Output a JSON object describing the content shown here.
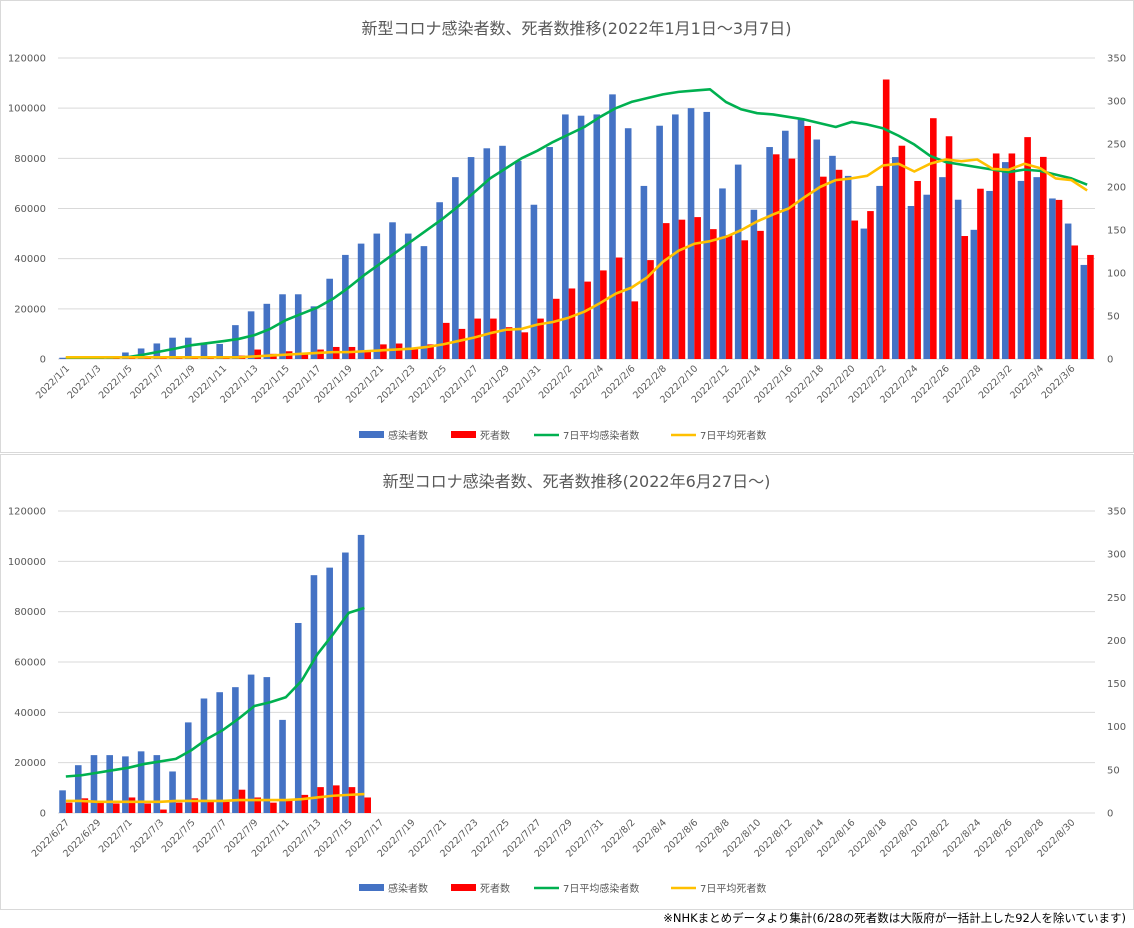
{
  "colors": {
    "cases": "#4472C4",
    "deaths": "#FF0000",
    "cases_avg": "#00B050",
    "deaths_avg": "#FFC000",
    "grid": "#d9d9d9",
    "text": "#595959"
  },
  "legend": [
    "感染者数",
    "死者数",
    "7日平均感染者数",
    "7日平均死者数"
  ],
  "footnote": "※NHKまとめデータより集計(6/28の死者数は大阪府が一括計上した92人を除いています)",
  "chart_data": [
    {
      "type": "bar",
      "title": "新型コロナ感染者数、死者数推移(2022年1月1日～3月7日)",
      "start": "2022-01-01",
      "categories": [
        "2022/1/1",
        "2022/1/2",
        "2022/1/3",
        "2022/1/4",
        "2022/1/5",
        "2022/1/6",
        "2022/1/7",
        "2022/1/8",
        "2022/1/9",
        "2022/1/10",
        "2022/1/11",
        "2022/1/12",
        "2022/1/13",
        "2022/1/14",
        "2022/1/15",
        "2022/1/16",
        "2022/1/17",
        "2022/1/18",
        "2022/1/19",
        "2022/1/20",
        "2022/1/21",
        "2022/1/22",
        "2022/1/23",
        "2022/1/24",
        "2022/1/25",
        "2022/1/26",
        "2022/1/27",
        "2022/1/28",
        "2022/1/29",
        "2022/1/30",
        "2022/1/31",
        "2022/2/1",
        "2022/2/2",
        "2022/2/3",
        "2022/2/4",
        "2022/2/5",
        "2022/2/6",
        "2022/2/7",
        "2022/2/8",
        "2022/2/9",
        "2022/2/10",
        "2022/2/11",
        "2022/2/12",
        "2022/2/13",
        "2022/2/14",
        "2022/2/15",
        "2022/2/16",
        "2022/2/17",
        "2022/2/18",
        "2022/2/19",
        "2022/2/20",
        "2022/2/21",
        "2022/2/22",
        "2022/2/23",
        "2022/2/24",
        "2022/2/25",
        "2022/2/26",
        "2022/2/27",
        "2022/2/28",
        "2022/3/1",
        "2022/3/2",
        "2022/3/3",
        "2022/3/4",
        "2022/3/5",
        "2022/3/6",
        "2022/3/7"
      ],
      "xtick_labels": [
        "2022/1/1",
        "2022/1/3",
        "2022/1/5",
        "2022/1/7",
        "2022/1/9",
        "2022/1/11",
        "2022/1/13",
        "2022/1/15",
        "2022/1/17",
        "2022/1/19",
        "2022/1/21",
        "2022/1/23",
        "2022/1/25",
        "2022/1/27",
        "2022/1/29",
        "2022/1/31",
        "2022/2/2",
        "2022/2/4",
        "2022/2/6",
        "2022/2/8",
        "2022/2/10",
        "2022/2/12",
        "2022/2/14",
        "2022/2/16",
        "2022/2/18",
        "2022/2/20",
        "2022/2/22",
        "2022/2/24",
        "2022/2/26",
        "2022/2/28",
        "2022/3/2",
        "2022/3/4",
        "2022/3/6"
      ],
      "series": [
        {
          "name": "感染者数",
          "axis": "left",
          "kind": "bar",
          "values": [
            500,
            500,
            800,
            1200,
            2600,
            4200,
            6200,
            8500,
            8500,
            6500,
            6000,
            13500,
            19000,
            22000,
            25800,
            25800,
            21000,
            32000,
            41500,
            46000,
            50000,
            54500,
            50000,
            45000,
            62500,
            72500,
            80500,
            84000,
            85000,
            79000,
            61500,
            84500,
            97500,
            97000,
            97500,
            105500,
            92000,
            69000,
            93000,
            97500,
            100000,
            98500,
            68000,
            77500,
            59500,
            84500,
            91000,
            95500,
            87500,
            81000,
            73000,
            52000,
            69000,
            80500,
            61000,
            65500,
            72500,
            63500,
            51500,
            67000,
            78500,
            71000,
            72500,
            64000,
            54000,
            37500
          ]
        },
        {
          "name": "死者数",
          "axis": "right",
          "kind": "bar",
          "values": [
            2,
            1,
            1,
            1,
            2,
            2,
            2,
            3,
            2,
            2,
            2,
            4,
            11,
            6,
            9,
            7,
            11,
            14,
            14,
            10,
            17,
            18,
            13,
            17,
            42,
            35,
            47,
            47,
            37,
            31,
            47,
            70,
            82,
            90,
            103,
            118,
            67,
            115,
            158,
            162,
            165,
            151,
            144,
            138,
            149,
            238,
            233,
            271,
            212,
            220,
            161,
            172,
            325,
            248,
            207,
            280,
            259,
            143,
            198,
            239,
            239,
            258,
            235,
            185,
            132,
            121
          ]
        },
        {
          "name": "7日平均感染者数",
          "axis": "left",
          "kind": "line",
          "values": [
            500,
            500,
            500,
            600,
            800,
            1800,
            3000,
            4200,
            5500,
            6300,
            7100,
            8000,
            9500,
            12000,
            15500,
            18000,
            20500,
            24000,
            28500,
            33500,
            38000,
            42500,
            47000,
            51500,
            56000,
            61000,
            66500,
            72000,
            76000,
            80000,
            83000,
            86500,
            89500,
            92500,
            96500,
            100000,
            102500,
            104000,
            105500,
            106500,
            107000,
            107500,
            102500,
            99500,
            98000,
            97500,
            96500,
            95500,
            94000,
            92500,
            94500,
            93500,
            92000,
            89000,
            85500,
            81000,
            78500,
            77500,
            76500,
            75500,
            74500,
            75500,
            75000,
            73500,
            72000,
            69500
          ]
        },
        {
          "name": "7日平均死者数",
          "axis": "right",
          "kind": "line",
          "values": [
            2,
            2,
            2,
            2,
            2,
            2,
            2,
            2,
            2,
            2,
            2,
            2,
            3,
            4,
            5,
            6,
            7,
            8,
            8,
            9,
            10,
            11,
            12,
            14,
            17,
            21,
            25,
            30,
            34,
            35,
            40,
            43,
            48,
            55,
            65,
            76,
            83,
            95,
            113,
            126,
            134,
            137,
            142,
            150,
            160,
            168,
            175,
            188,
            200,
            208,
            210,
            213,
            225,
            227,
            218,
            227,
            232,
            230,
            232,
            221,
            220,
            227,
            222,
            210,
            208,
            196
          ]
        }
      ],
      "ylim_left": [
        0,
        120000
      ],
      "ylim_right": [
        0,
        350
      ],
      "yticks_left": [
        "120000",
        "100000",
        "80000",
        "60000",
        "40000",
        "20000",
        "0"
      ],
      "yticks_right": [
        "350",
        "300",
        "250",
        "200",
        "150",
        "100",
        "50",
        "0"
      ]
    },
    {
      "type": "bar",
      "title": "新型コロナ感染者数、死者数推移(2022年6月27日～)",
      "start": "2022-06-27",
      "categories_count": 66,
      "xtick_labels": [
        "2022/6/27",
        "2022/6/29",
        "2022/7/1",
        "2022/7/3",
        "2022/7/5",
        "2022/7/7",
        "2022/7/9",
        "2022/7/11",
        "2022/7/13",
        "2022/7/15",
        "2022/7/17",
        "2022/7/19",
        "2022/7/21",
        "2022/7/23",
        "2022/7/25",
        "2022/7/27",
        "2022/7/29",
        "2022/7/31",
        "2022/8/2",
        "2022/8/4",
        "2022/8/6",
        "2022/8/8",
        "2022/8/10",
        "2022/8/12",
        "2022/8/14",
        "2022/8/16",
        "2022/8/18",
        "2022/8/20",
        "2022/8/22",
        "2022/8/24",
        "2022/8/26",
        "2022/8/28",
        "2022/8/30"
      ],
      "series": [
        {
          "name": "感染者数",
          "axis": "left",
          "kind": "bar",
          "values": [
            9000,
            19000,
            23000,
            23000,
            22500,
            24500,
            23000,
            16500,
            36000,
            45500,
            48000,
            50000,
            55000,
            54000,
            37000,
            75500,
            94500,
            97500,
            103500,
            110500
          ]
        },
        {
          "name": "死者数",
          "axis": "right",
          "kind": "bar",
          "values": [
            12,
            17,
            14,
            11,
            18,
            11,
            4,
            12,
            17,
            14,
            13,
            27,
            18,
            12,
            14,
            21,
            30,
            32,
            30,
            18
          ]
        },
        {
          "name": "7日平均感染者数",
          "axis": "left",
          "kind": "line",
          "values": [
            14500,
            15000,
            16000,
            17000,
            18000,
            19500,
            20500,
            21500,
            25000,
            29500,
            33000,
            37500,
            42500,
            44000,
            46000,
            52500,
            63000,
            71000,
            79500,
            81500
          ]
        },
        {
          "name": "7日平均死者数",
          "axis": "right",
          "kind": "line",
          "values": [
            14,
            14,
            13,
            13,
            13,
            13,
            13,
            14,
            14,
            14,
            14,
            15,
            15,
            15,
            15,
            16,
            18,
            20,
            21,
            22
          ]
        }
      ],
      "ylim_left": [
        0,
        120000
      ],
      "ylim_right": [
        0,
        350
      ],
      "yticks_left": [
        "120000",
        "100000",
        "80000",
        "60000",
        "40000",
        "20000",
        "0"
      ],
      "yticks_right": [
        "350",
        "300",
        "250",
        "200",
        "150",
        "100",
        "50",
        "0"
      ]
    }
  ]
}
